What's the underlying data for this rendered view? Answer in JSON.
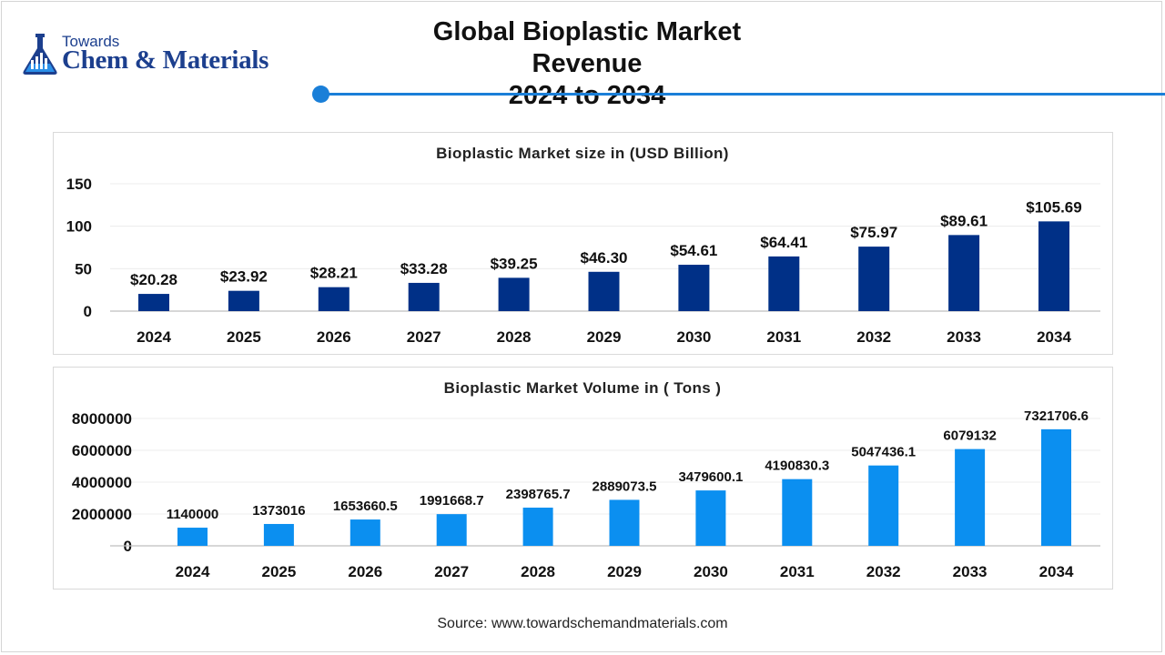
{
  "header": {
    "logo_small": "Towards",
    "logo_big": "Chem & Materials",
    "title_line1": "Global Bioplastic Market Revenue",
    "title_line2": "2024 to 2034"
  },
  "colors": {
    "accent": "#1a7fd8",
    "bar_dark": "#003087",
    "bar_light": "#0b8ff0",
    "logo": "#1c3f8e"
  },
  "footer": {
    "source": "Source: www.towardschemandmaterials.com"
  },
  "chart_data": [
    {
      "type": "bar",
      "title": "Bioplastic Market size in (USD Billion)",
      "categories": [
        "2024",
        "2025",
        "2026",
        "2027",
        "2028",
        "2029",
        "2030",
        "2031",
        "2032",
        "2033",
        "2034"
      ],
      "values": [
        20.28,
        23.92,
        28.21,
        33.28,
        39.25,
        46.3,
        54.61,
        64.41,
        75.97,
        89.61,
        105.69
      ],
      "labels": [
        "$20.28",
        "$23.92",
        "$28.21",
        "$33.28",
        "$39.25",
        "$46.30",
        "$54.61",
        "$64.41",
        "$75.97",
        "$89.61",
        "$105.69"
      ],
      "yticks": [
        "0",
        "50",
        "100",
        "150"
      ],
      "ytick_values": [
        0,
        50,
        100,
        150
      ],
      "ylim": [
        0,
        150
      ],
      "xlabel": "",
      "ylabel": "",
      "grid": true,
      "color": "#003087"
    },
    {
      "type": "bar",
      "title": "Bioplastic Market Volume in ( Tons )",
      "categories": [
        "2024",
        "2025",
        "2026",
        "2027",
        "2028",
        "2029",
        "2030",
        "2031",
        "2032",
        "2033",
        "2034"
      ],
      "values": [
        1140000,
        1373016,
        1653660.5,
        1991668.7,
        2398765.7,
        2889073.5,
        3479600.1,
        4190830.3,
        5047436.1,
        6079132,
        7321706.6
      ],
      "labels": [
        "1140000",
        "1373016",
        "1653660.5",
        "1991668.7",
        "2398765.7",
        "2889073.5",
        "3479600.1",
        "4190830.3",
        "5047436.1",
        "6079132",
        "7321706.6"
      ],
      "yticks": [
        "0",
        "2000000",
        "4000000",
        "6000000",
        "8000000"
      ],
      "ytick_values": [
        0,
        2000000,
        4000000,
        6000000,
        8000000
      ],
      "ylim": [
        0,
        8000000
      ],
      "xlabel": "",
      "ylabel": "",
      "grid": true,
      "color": "#0b8ff0"
    }
  ]
}
